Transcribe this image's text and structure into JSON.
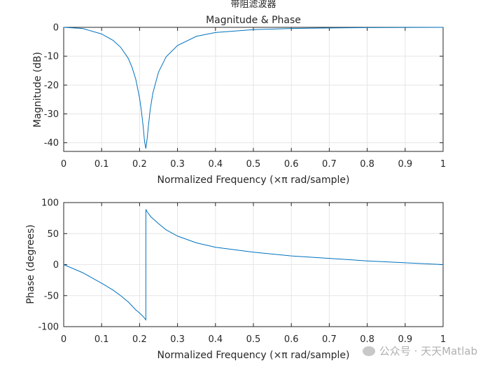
{
  "figure_title": "带阻滤波器",
  "watermark": "公众号 · 天天Matlab",
  "colors": {
    "line": "#0072BD",
    "grid": "#e6e6e6",
    "axis": "#262626",
    "text": "#262626"
  },
  "chart_data": [
    {
      "type": "line",
      "title": "Magnitude & Phase",
      "xlabel": "Normalized Frequency  (×π rad/sample)",
      "ylabel": "Magnitude (dB)",
      "xlim": [
        0,
        1
      ],
      "ylim": [
        -43,
        0
      ],
      "xticks": [
        "0",
        "0.1",
        "0.2",
        "0.3",
        "0.4",
        "0.5",
        "0.6",
        "0.7",
        "0.8",
        "0.9",
        "1"
      ],
      "yticks": [
        "-40",
        "-30",
        "-20",
        "-10",
        "0"
      ],
      "grid": true,
      "series": [
        {
          "x": [
            0,
            0.05,
            0.1,
            0.13,
            0.15,
            0.17,
            0.18,
            0.19,
            0.2,
            0.205,
            0.21,
            0.213,
            0.2165,
            0.22,
            0.223,
            0.228,
            0.235,
            0.25,
            0.27,
            0.3,
            0.35,
            0.4,
            0.5,
            0.6,
            0.7,
            0.8,
            1.0
          ],
          "y": [
            0,
            -0.4,
            -2.3,
            -4.5,
            -6.9,
            -10.7,
            -13.8,
            -18,
            -24.5,
            -29.2,
            -35,
            -39.5,
            -42,
            -38.5,
            -34.5,
            -28.5,
            -22.8,
            -15.5,
            -10.2,
            -6.3,
            -3.1,
            -1.8,
            -0.8,
            -0.4,
            -0.2,
            -0.1,
            0
          ]
        }
      ]
    },
    {
      "type": "line",
      "title": "",
      "xlabel": "Normalized Frequency  (×π rad/sample)",
      "ylabel": "Phase (degrees)",
      "xlim": [
        0,
        1
      ],
      "ylim": [
        -100,
        100
      ],
      "xticks": [
        "0",
        "0.1",
        "0.2",
        "0.3",
        "0.4",
        "0.5",
        "0.6",
        "0.7",
        "0.8",
        "0.9",
        "1"
      ],
      "yticks": [
        "-100",
        "-50",
        "0",
        "50",
        "100"
      ],
      "grid": true,
      "series": [
        {
          "x": [
            0,
            0.05,
            0.1,
            0.13,
            0.15,
            0.17,
            0.19,
            0.2,
            0.21,
            0.2165,
            0.2166,
            0.22,
            0.23,
            0.25,
            0.27,
            0.3,
            0.35,
            0.4,
            0.5,
            0.6,
            0.7,
            0.8,
            0.9,
            1.0
          ],
          "y": [
            0,
            -13,
            -30,
            -41,
            -50,
            -60,
            -73,
            -78,
            -84,
            -89,
            89,
            85,
            77,
            66,
            56,
            46,
            35,
            28,
            20,
            14,
            10,
            6,
            3,
            0
          ]
        }
      ]
    }
  ]
}
